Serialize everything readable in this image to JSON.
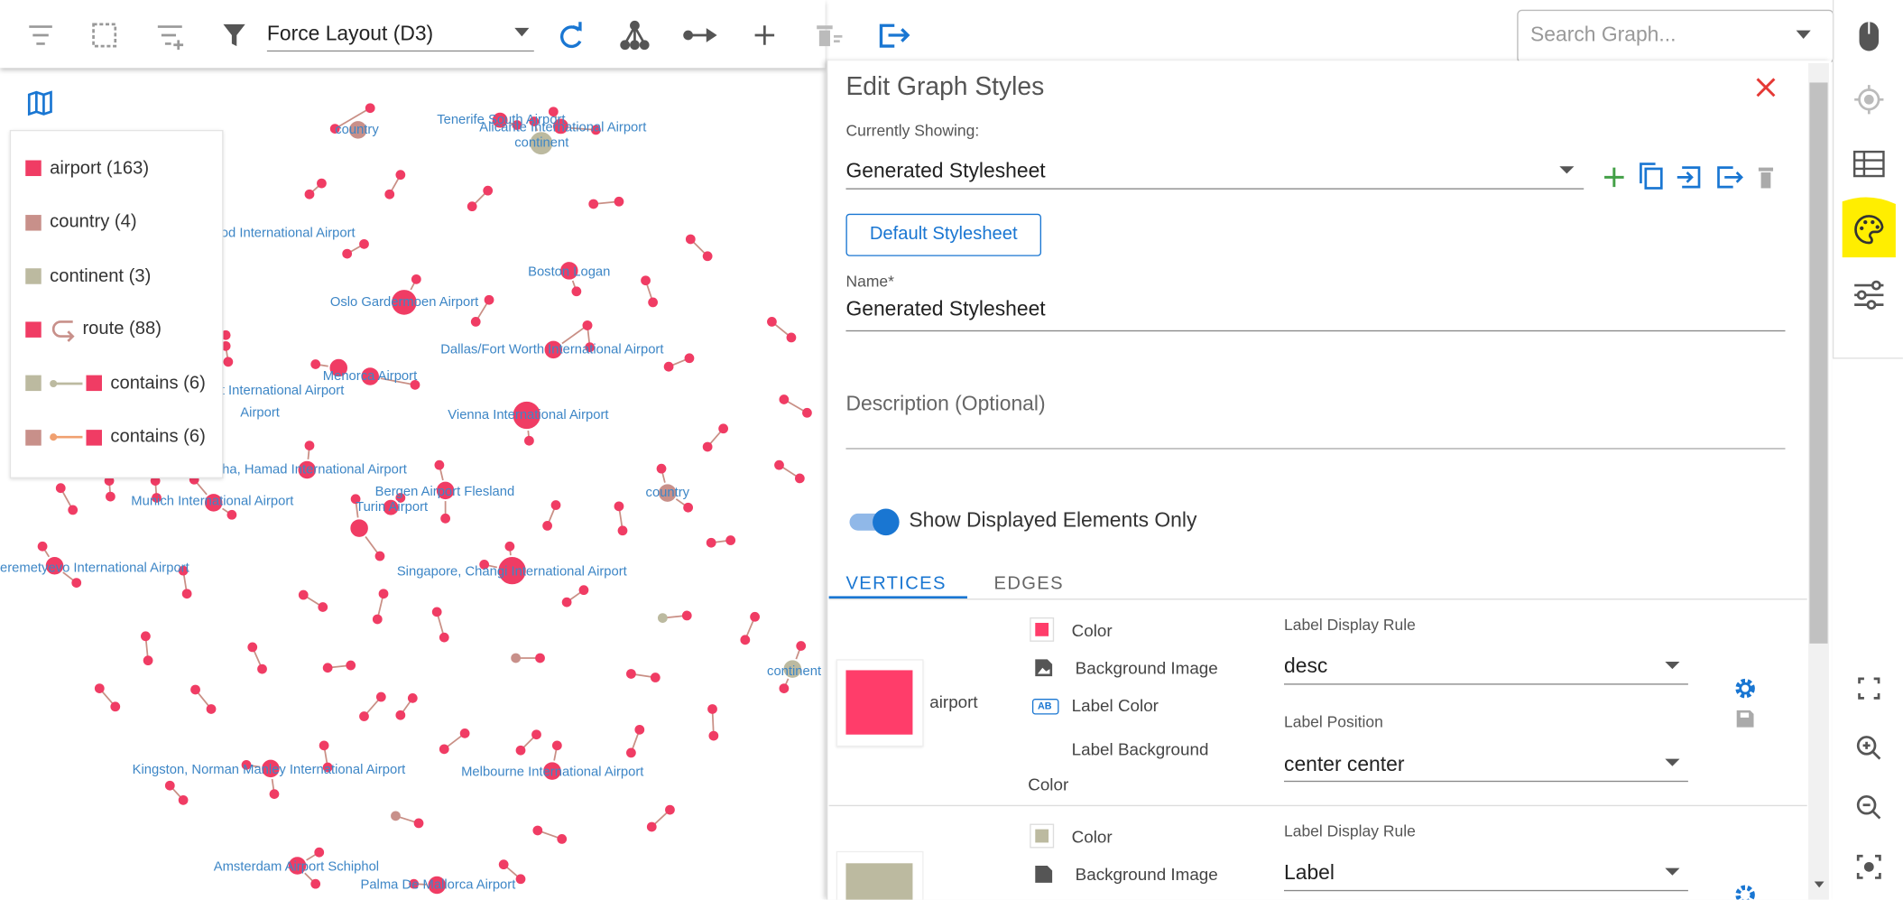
{
  "toolbar": {
    "layout": "Force Layout (D3)",
    "search_placeholder": "Search Graph..."
  },
  "legend": [
    "airport (163)",
    "country (4)",
    "continent (3)",
    "route (88)",
    "contains (6)",
    "contains (6)"
  ],
  "graph_labels": [
    "country",
    "Tenerife South Airport",
    "Alicante International Airport",
    "continent",
    "od International Airport",
    "Boston Logan",
    "Oslo Gardermoen Airport",
    "Dallas/Fort Worth International Airport",
    "Menorca Airport",
    "t International Airport",
    "Airport",
    "Vienna International Airport",
    "ha, Hamad International Airport",
    "Bergen Airport Flesland",
    "Turin Airport",
    "country",
    "Munich International Airport",
    "eremetyevo International Airport",
    "Singapore, Changi International Airport",
    "continent",
    "Kingston, Norman Manley International Airport",
    "Melbourne International Airport",
    "Amsterdam Airport Schiphol",
    "Palma De Mallorca Airport"
  ],
  "panel": {
    "title": "Edit Graph Styles",
    "currently_showing_label": "Currently Showing:",
    "stylesheet": "Generated Stylesheet",
    "default_button": "Default Stylesheet",
    "name_label": "Name*",
    "name_value": "Generated Stylesheet",
    "description_label": "Description (Optional)",
    "toggle_label": "Show Displayed Elements Only",
    "tabs": [
      "VERTICES",
      "EDGES"
    ],
    "vertex_styles": [
      {
        "name": "airport",
        "color_label": "Color",
        "background_image_label": "Background Image",
        "label_color_label": "Label Color",
        "label_background_label": "Label Background Color",
        "display_rule_label": "Label Display Rule",
        "display_rule": "desc",
        "position_label": "Label Position",
        "position": "center center"
      },
      {
        "color_label": "Color",
        "background_image_label": "Background Image",
        "display_rule_label": "Label Display Rule",
        "display_rule": "Label"
      }
    ]
  }
}
